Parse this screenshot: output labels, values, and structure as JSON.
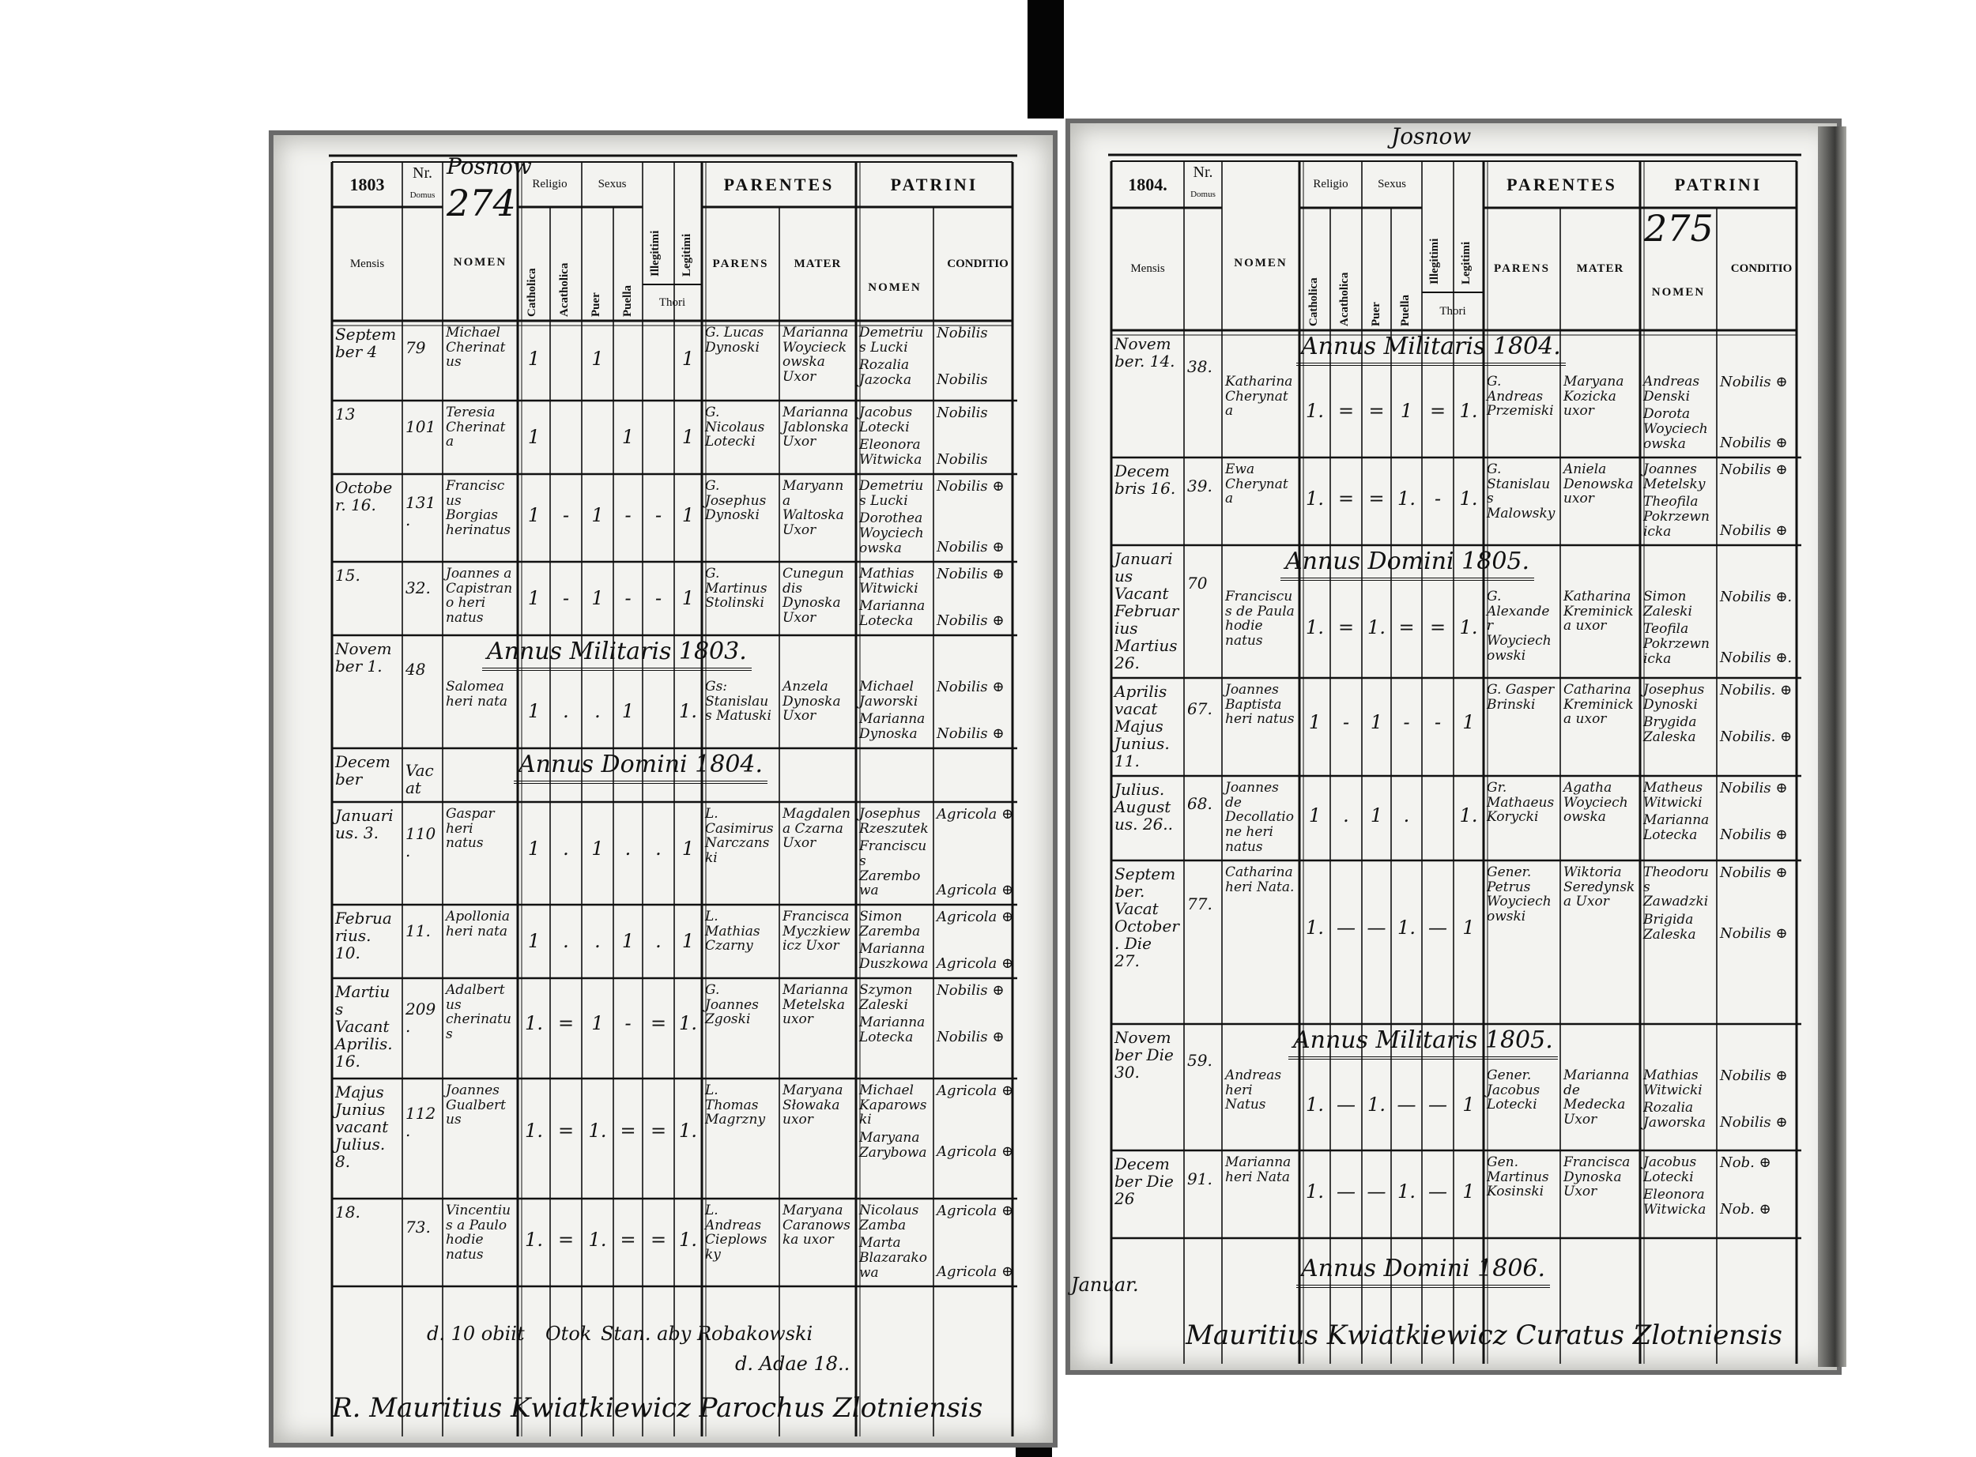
{
  "left_page": {
    "place_note": "Posnow",
    "volume_number": "274",
    "header": {
      "year": "1803",
      "nr": "Nr.",
      "domus": "Domus",
      "nomen": "NOMEN",
      "mensis": "Mensis",
      "religio": "Religio",
      "catholica": "Catholica",
      "acatholica": "Acatholica",
      "sexus": "Sexus",
      "puer": "Puer",
      "puella": "Puella",
      "illegitimi": "Illegitimi",
      "legitimi": "Legitimi",
      "thori": "Thori",
      "parentes": "PARENTES",
      "parens": "PARENS",
      "mater": "MATER",
      "patrini": "PATRINI",
      "patrini_nomen": "NOMEN",
      "conditio": "CONDITIO"
    },
    "entries": [
      {
        "month": "Septem ber 4",
        "nr": "79",
        "nomen": "Michael Cherinatus",
        "marks": [
          "1",
          "",
          "1",
          "",
          "",
          "1"
        ],
        "parens": "G. Lucas Dynoski",
        "mater": "Marianna Woycieckowska Uxor",
        "patrini": [
          "Demetrius Lucki",
          "Rozalia Jazocka"
        ],
        "conditio": [
          "Nobilis",
          "Nobilis"
        ]
      },
      {
        "month": "13",
        "nr": "101",
        "nomen": "Teresia Cherinata",
        "marks": [
          "1",
          "",
          "",
          "1",
          "",
          "1"
        ],
        "parens": "G. Nicolaus Lotecki",
        "mater": "Marianna Jablonska Uxor",
        "patrini": [
          "Jacobus Lotecki",
          "Eleonora Witwicka"
        ],
        "conditio": [
          "Nobilis",
          "Nobilis"
        ]
      },
      {
        "month": "October. 16.",
        "nr": "131.",
        "nomen": "Franciscus Borgias herinatus",
        "marks": [
          "1",
          "-",
          "1",
          "-",
          "-",
          "1"
        ],
        "parens": "G. Josephus Dynoski",
        "mater": "Maryanna Waltoska Uxor",
        "patrini": [
          "Demetrius Lucki",
          "Dorothea Woyciechowska"
        ],
        "conditio": [
          "Nobilis ⊕",
          "Nobilis ⊕"
        ]
      },
      {
        "month": "15.",
        "nr": "32.",
        "nomen": "Joannes a Capistrano heri natus",
        "marks": [
          "1",
          "-",
          "1",
          "-",
          "-",
          "1"
        ],
        "parens": "G. Martinus Stolinski",
        "mater": "Cunegundis Dynoska Uxor",
        "patrini": [
          "Mathias Witwicki",
          "Marianna Lotecka"
        ],
        "conditio": [
          "Nobilis ⊕",
          "Nobilis ⊕"
        ]
      },
      {
        "month": "November 1.",
        "nr": "48",
        "nomen": "Salomea heri nata",
        "marks": [
          "1",
          ".",
          ".",
          "1",
          "",
          "1."
        ],
        "parens": "Gs: Stanislaus Matuski",
        "mater": "Anzela Dynoska Uxor",
        "patrini": [
          "Michael Jaworski",
          "Marianna Dynoska"
        ],
        "conditio": [
          "Nobilis ⊕",
          "Nobilis ⊕"
        ]
      },
      {
        "month": "December",
        "nr": "Vacat",
        "nomen": "",
        "marks": [
          "",
          "",
          "",
          "",
          "",
          ""
        ],
        "parens": "",
        "mater": "",
        "patrini": [
          "",
          ""
        ],
        "conditio": [
          "",
          ""
        ]
      },
      {
        "month": "Januarius. 3.",
        "nr": "110.",
        "nomen": "Gaspar heri natus",
        "marks": [
          "1",
          ".",
          "1",
          ".",
          ".",
          "1"
        ],
        "parens": "L. Casimirus Narczanski",
        "mater": "Magdalena Czarna Uxor",
        "patrini": [
          "Josephus Rzeszutek",
          "Franciscus Zarembowa"
        ],
        "conditio": [
          "Agricola ⊕",
          "Agricola ⊕"
        ]
      },
      {
        "month": "Februarius. 10.",
        "nr": "11.",
        "nomen": "Apollonia heri nata",
        "marks": [
          "1",
          ".",
          ".",
          "1",
          ".",
          "1"
        ],
        "parens": "L. Mathias Czarny",
        "mater": "Francisca Myczkiewicz Uxor",
        "patrini": [
          "Simon Zaremba",
          "Marianna Duszkowa"
        ],
        "conditio": [
          "Agricola ⊕",
          "Agricola ⊕"
        ]
      },
      {
        "month": "Martius Vacant Aprilis. 16.",
        "nr": "209.",
        "nomen": "Adalbertus cherinatus",
        "marks": [
          "1.",
          "=",
          "1",
          "-",
          "=",
          "1."
        ],
        "parens": "G. Joannes Zgoski",
        "mater": "Marianna Metelska uxor",
        "patrini": [
          "Szymon Zaleski",
          "Marianna Lotecka"
        ],
        "conditio": [
          "Nobilis ⊕",
          "Nobilis ⊕"
        ]
      },
      {
        "month": "Majus Junius vacant Julius. 8.",
        "nr": "112.",
        "nomen": "Joannes Gualbertus",
        "marks": [
          "1.",
          "=",
          "1.",
          "=",
          "=",
          "1."
        ],
        "parens": "L. Thomas Magrzny",
        "mater": "Maryana Słowaka uxor",
        "patrini": [
          "Michael Kaparowski",
          "Maryana Zarybowa"
        ],
        "conditio": [
          "Agricola ⊕",
          "Agricola ⊕"
        ]
      },
      {
        "month": "18.",
        "nr": "73.",
        "nomen": "Vincentius a Paulo hodie natus",
        "marks": [
          "1.",
          "=",
          "1.",
          "=",
          "=",
          "1."
        ],
        "parens": "L. Andreas Cieplowsky",
        "mater": "Maryana Caranowska uxor",
        "patrini": [
          "Nicolaus Zamba",
          "Marta Blazarakowa"
        ],
        "conditio": [
          "Agricola ⊕",
          "Agricola ⊕"
        ]
      }
    ],
    "sections": [
      "Annus Militaris 1803.",
      "Annus Domini 1804."
    ],
    "footer_notes": [
      "d. 10 obiit",
      "Otok",
      "Stan. aby Robakowski",
      "d. Adae 18.."
    ],
    "signature": "R. Mauritius Kwiatkiewicz Parochus Zlotniensis"
  },
  "right_page": {
    "place_note": "Josnow",
    "volume_number": "275",
    "header": {
      "year": "1804.",
      "nr": "Nr.",
      "domus": "Domus",
      "nomen": "NOMEN",
      "mensis": "Mensis",
      "religio": "Religio",
      "catholica": "Catholica",
      "acatholica": "Acatholica",
      "sexus": "Sexus",
      "puer": "Puer",
      "puella": "Puella",
      "illegitimi": "Illegitimi",
      "legitimi": "Legitimi",
      "thori": "Thori",
      "parentes": "PARENTES",
      "parens": "PARENS",
      "mater": "MATER",
      "patrini": "PATRINI",
      "patrini_nomen": "NOMEN",
      "conditio": "CONDITIO"
    },
    "entries": [
      {
        "month": "November. 14.",
        "nr": "38.",
        "nomen": "Katharina Cherynata",
        "marks": [
          "1.",
          "=",
          "=",
          "1",
          "=",
          "1."
        ],
        "parens": "G. Andreas Przemiski",
        "mater": "Maryana Kozicka uxor",
        "patrini": [
          "Andreas Denski",
          "Dorota Woyciechowska"
        ],
        "conditio": [
          "Nobilis ⊕",
          "Nobilis ⊕"
        ]
      },
      {
        "month": "Decembris 16.",
        "nr": "39.",
        "nomen": "Ewa Cherynata",
        "marks": [
          "1.",
          "=",
          "=",
          "1.",
          "-",
          "1."
        ],
        "parens": "G. Stanislaus Malowsky",
        "mater": "Aniela Denowska uxor",
        "patrini": [
          "Joannes Metelsky",
          "Theofila Pokrzewnicka"
        ],
        "conditio": [
          "Nobilis ⊕",
          "Nobilis ⊕"
        ]
      },
      {
        "month": "Januarius Vacant Februarius Martius 26.",
        "nr": "70",
        "nomen": "Franciscus de Paula hodie natus",
        "marks": [
          "1.",
          "=",
          "1.",
          "=",
          "=",
          "1."
        ],
        "parens": "G. Alexander Woyciechowski",
        "mater": "Katharina Kreminicka uxor",
        "patrini": [
          "Simon Zaleski",
          "Teofila Pokrzewnicka"
        ],
        "conditio": [
          "Nobilis ⊕.",
          "Nobilis ⊕."
        ]
      },
      {
        "month": "Aprilis vacat Majus Junius. 11.",
        "nr": "67.",
        "nomen": "Joannes Baptista heri natus",
        "marks": [
          "1",
          "-",
          "1",
          "-",
          "-",
          "1"
        ],
        "parens": "G. Gasper Brinski",
        "mater": "Catharina Kreminicka uxor",
        "patrini": [
          "Josephus Dynoski",
          "Brygida Zaleska"
        ],
        "conditio": [
          "Nobilis. ⊕",
          "Nobilis. ⊕"
        ]
      },
      {
        "month": "Julius. Augustus. 26..",
        "nr": "68.",
        "nomen": "Joannes de Decollatione heri natus",
        "marks": [
          "1",
          ".",
          "1",
          ".",
          "",
          "1."
        ],
        "parens": "Gr. Mathaeus Korycki",
        "mater": "Agatha Woyciechowska",
        "patrini": [
          "Matheus Witwicki",
          "Marianna Lotecka"
        ],
        "conditio": [
          "Nobilis ⊕",
          "Nobilis ⊕"
        ]
      },
      {
        "month": "September. Vacat October. Die 27.",
        "nr": "77.",
        "nomen": "Catharina heri Nata.",
        "marks": [
          "1.",
          "—",
          "—",
          "1.",
          "—",
          "1"
        ],
        "parens": "Gener. Petrus Woyciechowski",
        "mater": "Wiktoria Seredynska Uxor",
        "patrini": [
          "Theodorus Zawadzki",
          "Brigida Zaleska"
        ],
        "conditio": [
          "Nobilis ⊕",
          "Nobilis ⊕"
        ]
      },
      {
        "month": "November Die 30.",
        "nr": "59.",
        "nomen": "Andreas heri Natus",
        "marks": [
          "1.",
          "—",
          "1.",
          "—",
          "—",
          "1"
        ],
        "parens": "Gener. Jacobus Lotecki",
        "mater": "Marianna de Medecka Uxor",
        "patrini": [
          "Mathias Witwicki",
          "Rozalia Jaworska"
        ],
        "conditio": [
          "Nobilis ⊕",
          "Nobilis ⊕"
        ]
      },
      {
        "month": "December Die 26",
        "nr": "91.",
        "nomen": "Marianna heri Nata",
        "marks": [
          "1.",
          "—",
          "—",
          "1.",
          "—",
          "1"
        ],
        "parens": "Gen. Martinus Kosinski",
        "mater": "Francisca Dynoska Uxor",
        "patrini": [
          "Jacobus Lotecki",
          "Eleonora Witwicka"
        ],
        "conditio": [
          "Nob. ⊕",
          "Nob. ⊕"
        ]
      }
    ],
    "sections": [
      "Annus Militaris 1804.",
      "Annus Domini 1805.",
      "Annus Militaris 1805.",
      "Annus Domini 1806."
    ],
    "footer_notes": [
      "Januar."
    ],
    "signature": "Mauritius Kwiatkiewicz Curatus Zlotniensis"
  },
  "colors": {
    "ink": "#111111",
    "paper": "#f3f3f0",
    "binding": "#050505"
  }
}
